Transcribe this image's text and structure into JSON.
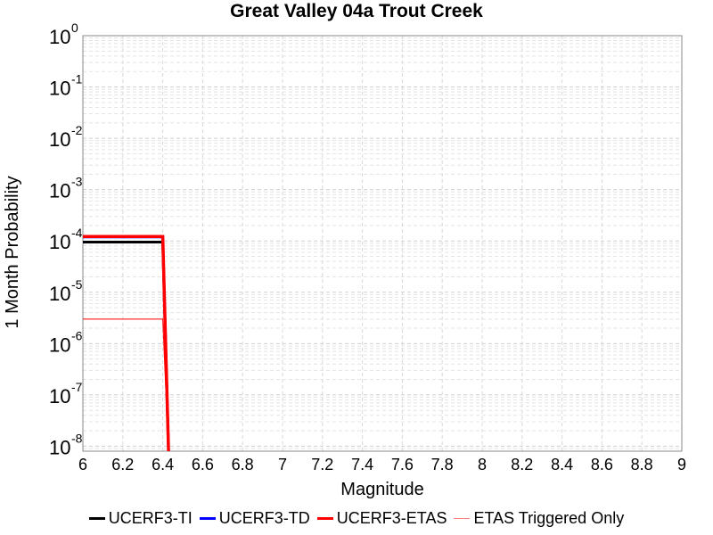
{
  "chart_data": {
    "type": "line",
    "title": "Great Valley 04a Trout Creek",
    "xlabel": "Magnitude",
    "ylabel": "1 Month Probability",
    "xlim": [
      6,
      9
    ],
    "ylim": [
      8e-09,
      1
    ],
    "yscale": "log",
    "grid": true,
    "legend_position": "bottom",
    "xticks": [
      "6",
      "6.2",
      "6.4",
      "6.6",
      "6.8",
      "7",
      "7.2",
      "7.4",
      "7.6",
      "7.8",
      "8",
      "8.2",
      "8.4",
      "8.6",
      "8.8",
      "9"
    ],
    "yticks": [
      {
        "base": "10",
        "exp": "0",
        "value": 1
      },
      {
        "base": "10",
        "exp": "-1",
        "value": 0.1
      },
      {
        "base": "10",
        "exp": "-2",
        "value": 0.01
      },
      {
        "base": "10",
        "exp": "-3",
        "value": 0.001
      },
      {
        "base": "10",
        "exp": "-4",
        "value": 0.0001
      },
      {
        "base": "10",
        "exp": "-5",
        "value": 1e-05
      },
      {
        "base": "10",
        "exp": "-6",
        "value": 1e-06
      },
      {
        "base": "10",
        "exp": "-7",
        "value": 1e-07
      },
      {
        "base": "10",
        "exp": "-8",
        "value": 1e-08
      }
    ],
    "series": [
      {
        "name": "UCERF3-TI",
        "color": "#000000",
        "width": 3,
        "x": [
          6.0,
          6.39,
          6.4,
          6.43
        ],
        "y": [
          9.5e-05,
          9.5e-05,
          9.5e-05,
          6e-09
        ]
      },
      {
        "name": "UCERF3-TD",
        "color": "#0000ff",
        "width": 3,
        "x": [
          6.0,
          6.39,
          6.4,
          6.43
        ],
        "y": [
          0.00012,
          0.00012,
          0.00012,
          6e-09
        ]
      },
      {
        "name": "UCERF3-ETAS",
        "color": "#ff0000",
        "width": 3.5,
        "x": [
          6.0,
          6.39,
          6.4,
          6.43
        ],
        "y": [
          0.000122,
          0.000122,
          0.000122,
          6e-09
        ]
      },
      {
        "name": "ETAS Triggered Only",
        "color": "#ff0000",
        "width": 1,
        "x": [
          6.0,
          6.39,
          6.4,
          6.43
        ],
        "y": [
          3e-06,
          3e-06,
          3e-06,
          6e-09
        ]
      }
    ]
  },
  "legend": {
    "items": [
      {
        "label": "UCERF3-TI",
        "color": "#000000"
      },
      {
        "label": "UCERF3-TD",
        "color": "#0000ff"
      },
      {
        "label": "UCERF3-ETAS",
        "color": "#ff0000"
      },
      {
        "label": "ETAS Triggered Only",
        "color": "#ff8080"
      }
    ]
  }
}
